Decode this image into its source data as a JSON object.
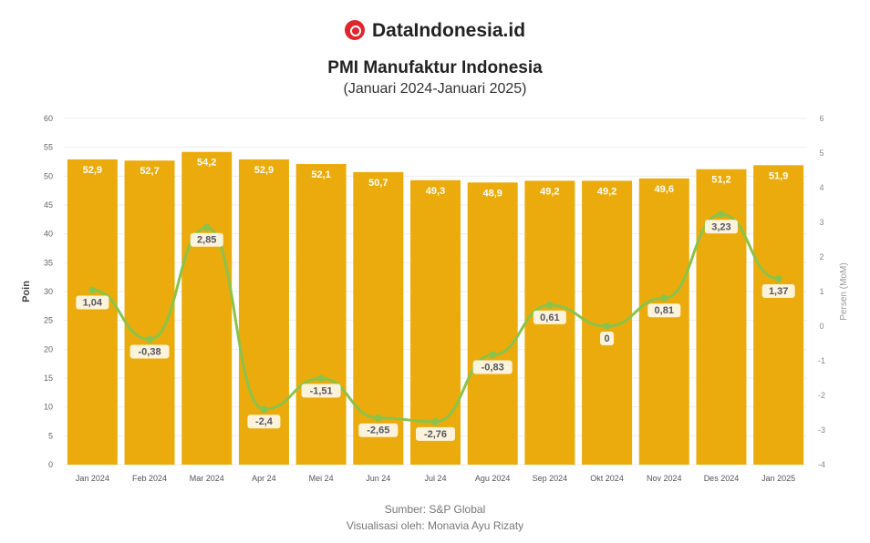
{
  "brand": "DataIndonesia.id",
  "title": "PMI Manufaktur Indonesia",
  "subtitle": "(Januari 2024-Januari 2025)",
  "source": "Sumber: S&P Global",
  "visual": "Visualisasi oleh: Monavia Ayu Rizaty",
  "colors": {
    "bar": "#ebab0c",
    "line": "#8bc34a"
  },
  "chart_data": {
    "type": "bar",
    "title": "PMI Manufaktur Indonesia",
    "categories": [
      "Jan 2024",
      "Feb 2024",
      "Mar 2024",
      "Apr 24",
      "Mei 24",
      "Jun 24",
      "Jul 24",
      "Agu 2024",
      "Sep 2024",
      "Okt 2024",
      "Nov 2024",
      "Des 2024",
      "Jan 2025"
    ],
    "series": [
      {
        "name": "PMI",
        "type": "bar",
        "axis": "left",
        "values": [
          52.9,
          52.7,
          54.2,
          52.9,
          52.1,
          50.7,
          49.3,
          48.9,
          49.2,
          49.2,
          49.6,
          51.2,
          51.9
        ],
        "labels": [
          "52,9",
          "52,7",
          "54,2",
          "52,9",
          "52,1",
          "50,7",
          "49,3",
          "48,9",
          "49,2",
          "49,2",
          "49,6",
          "51,2",
          "51,9"
        ]
      },
      {
        "name": "Persen (MoM)",
        "type": "line",
        "axis": "right",
        "values": [
          1.04,
          -0.38,
          2.85,
          -2.4,
          -1.51,
          -2.65,
          -2.76,
          -0.83,
          0.61,
          0,
          0.81,
          3.23,
          1.37
        ],
        "labels": [
          "1,04",
          "-0,38",
          "2,85",
          "-2,4",
          "-1,51",
          "-2,65",
          "-2,76",
          "-0,83",
          "0,61",
          "0",
          "0,81",
          "3,23",
          "1,37"
        ]
      }
    ],
    "ylabel": "Poin",
    "ylim": [
      0,
      60
    ],
    "yticks": [
      "0",
      "5",
      "10",
      "15",
      "20",
      "25",
      "30",
      "35",
      "40",
      "45",
      "50",
      "55",
      "60"
    ],
    "y2label": "Persen (MoM)",
    "y2lim": [
      -4,
      6
    ],
    "y2ticks": [
      "-4",
      "-3",
      "-2",
      "-1",
      "0",
      "1",
      "2",
      "3",
      "4",
      "5",
      "6"
    ],
    "grid": true
  }
}
